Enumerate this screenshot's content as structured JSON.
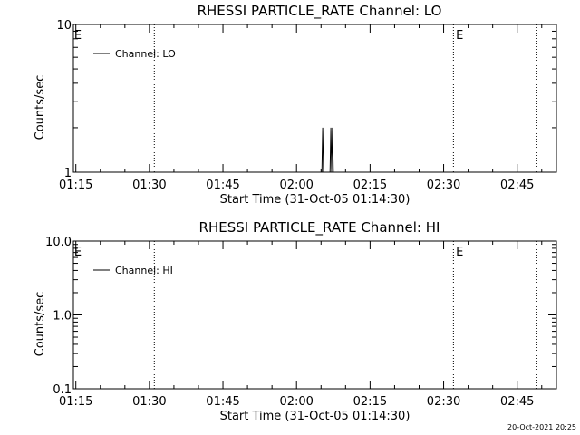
{
  "footer": {
    "timestamp": "20-Oct-2021 20:25"
  },
  "chart_data": [
    {
      "type": "line",
      "title": "RHESSI PARTICLE_RATE Channel: LO",
      "xlabel": "Start Time (31-Oct-05 01:14:30)",
      "ylabel": "Counts/sec",
      "x_tick_labels": [
        "01:15",
        "01:30",
        "01:45",
        "02:00",
        "02:15",
        "02:30",
        "02:45"
      ],
      "y_tick_labels": [
        "1",
        "10"
      ],
      "y_scale": "log",
      "ylim": [
        1,
        10
      ],
      "xlim": [
        "01:14:30",
        "02:53:00"
      ],
      "legend": {
        "label": "Channel: LO",
        "placement": "top-left"
      },
      "event_lines": [
        "01:31:00",
        "02:32:00",
        "02:49:00"
      ],
      "event_markers": [
        {
          "label": "E",
          "time": "01:14:40"
        },
        {
          "label": "E",
          "time": "02:32:30"
        }
      ],
      "series": [
        {
          "name": "Channel: LO",
          "points": [
            {
              "x": "02:05:10",
              "y": 1
            },
            {
              "x": "02:05:20",
              "y": 2
            },
            {
              "x": "02:05:30",
              "y": 1
            },
            {
              "x": "02:06:50",
              "y": 1
            },
            {
              "x": "02:07:00",
              "y": 2
            },
            {
              "x": "02:07:10",
              "y": 1
            },
            {
              "x": "02:07:20",
              "y": 2
            },
            {
              "x": "02:07:30",
              "y": 1
            }
          ]
        }
      ]
    },
    {
      "type": "line",
      "title": "RHESSI PARTICLE_RATE Channel: HI",
      "xlabel": "Start Time (31-Oct-05 01:14:30)",
      "ylabel": "Counts/sec",
      "x_tick_labels": [
        "01:15",
        "01:30",
        "01:45",
        "02:00",
        "02:15",
        "02:30",
        "02:45"
      ],
      "y_tick_labels": [
        "0.1",
        "1.0",
        "10.0"
      ],
      "y_scale": "log",
      "ylim": [
        0.1,
        10
      ],
      "xlim": [
        "01:14:30",
        "02:53:00"
      ],
      "legend": {
        "label": "Channel: HI",
        "placement": "top-left"
      },
      "event_lines": [
        "01:31:00",
        "02:32:00",
        "02:49:00"
      ],
      "event_markers": [
        {
          "label": "E",
          "time": "01:14:40"
        },
        {
          "label": "E",
          "time": "02:32:30"
        }
      ],
      "series": [
        {
          "name": "Channel: HI",
          "points": []
        }
      ]
    }
  ]
}
